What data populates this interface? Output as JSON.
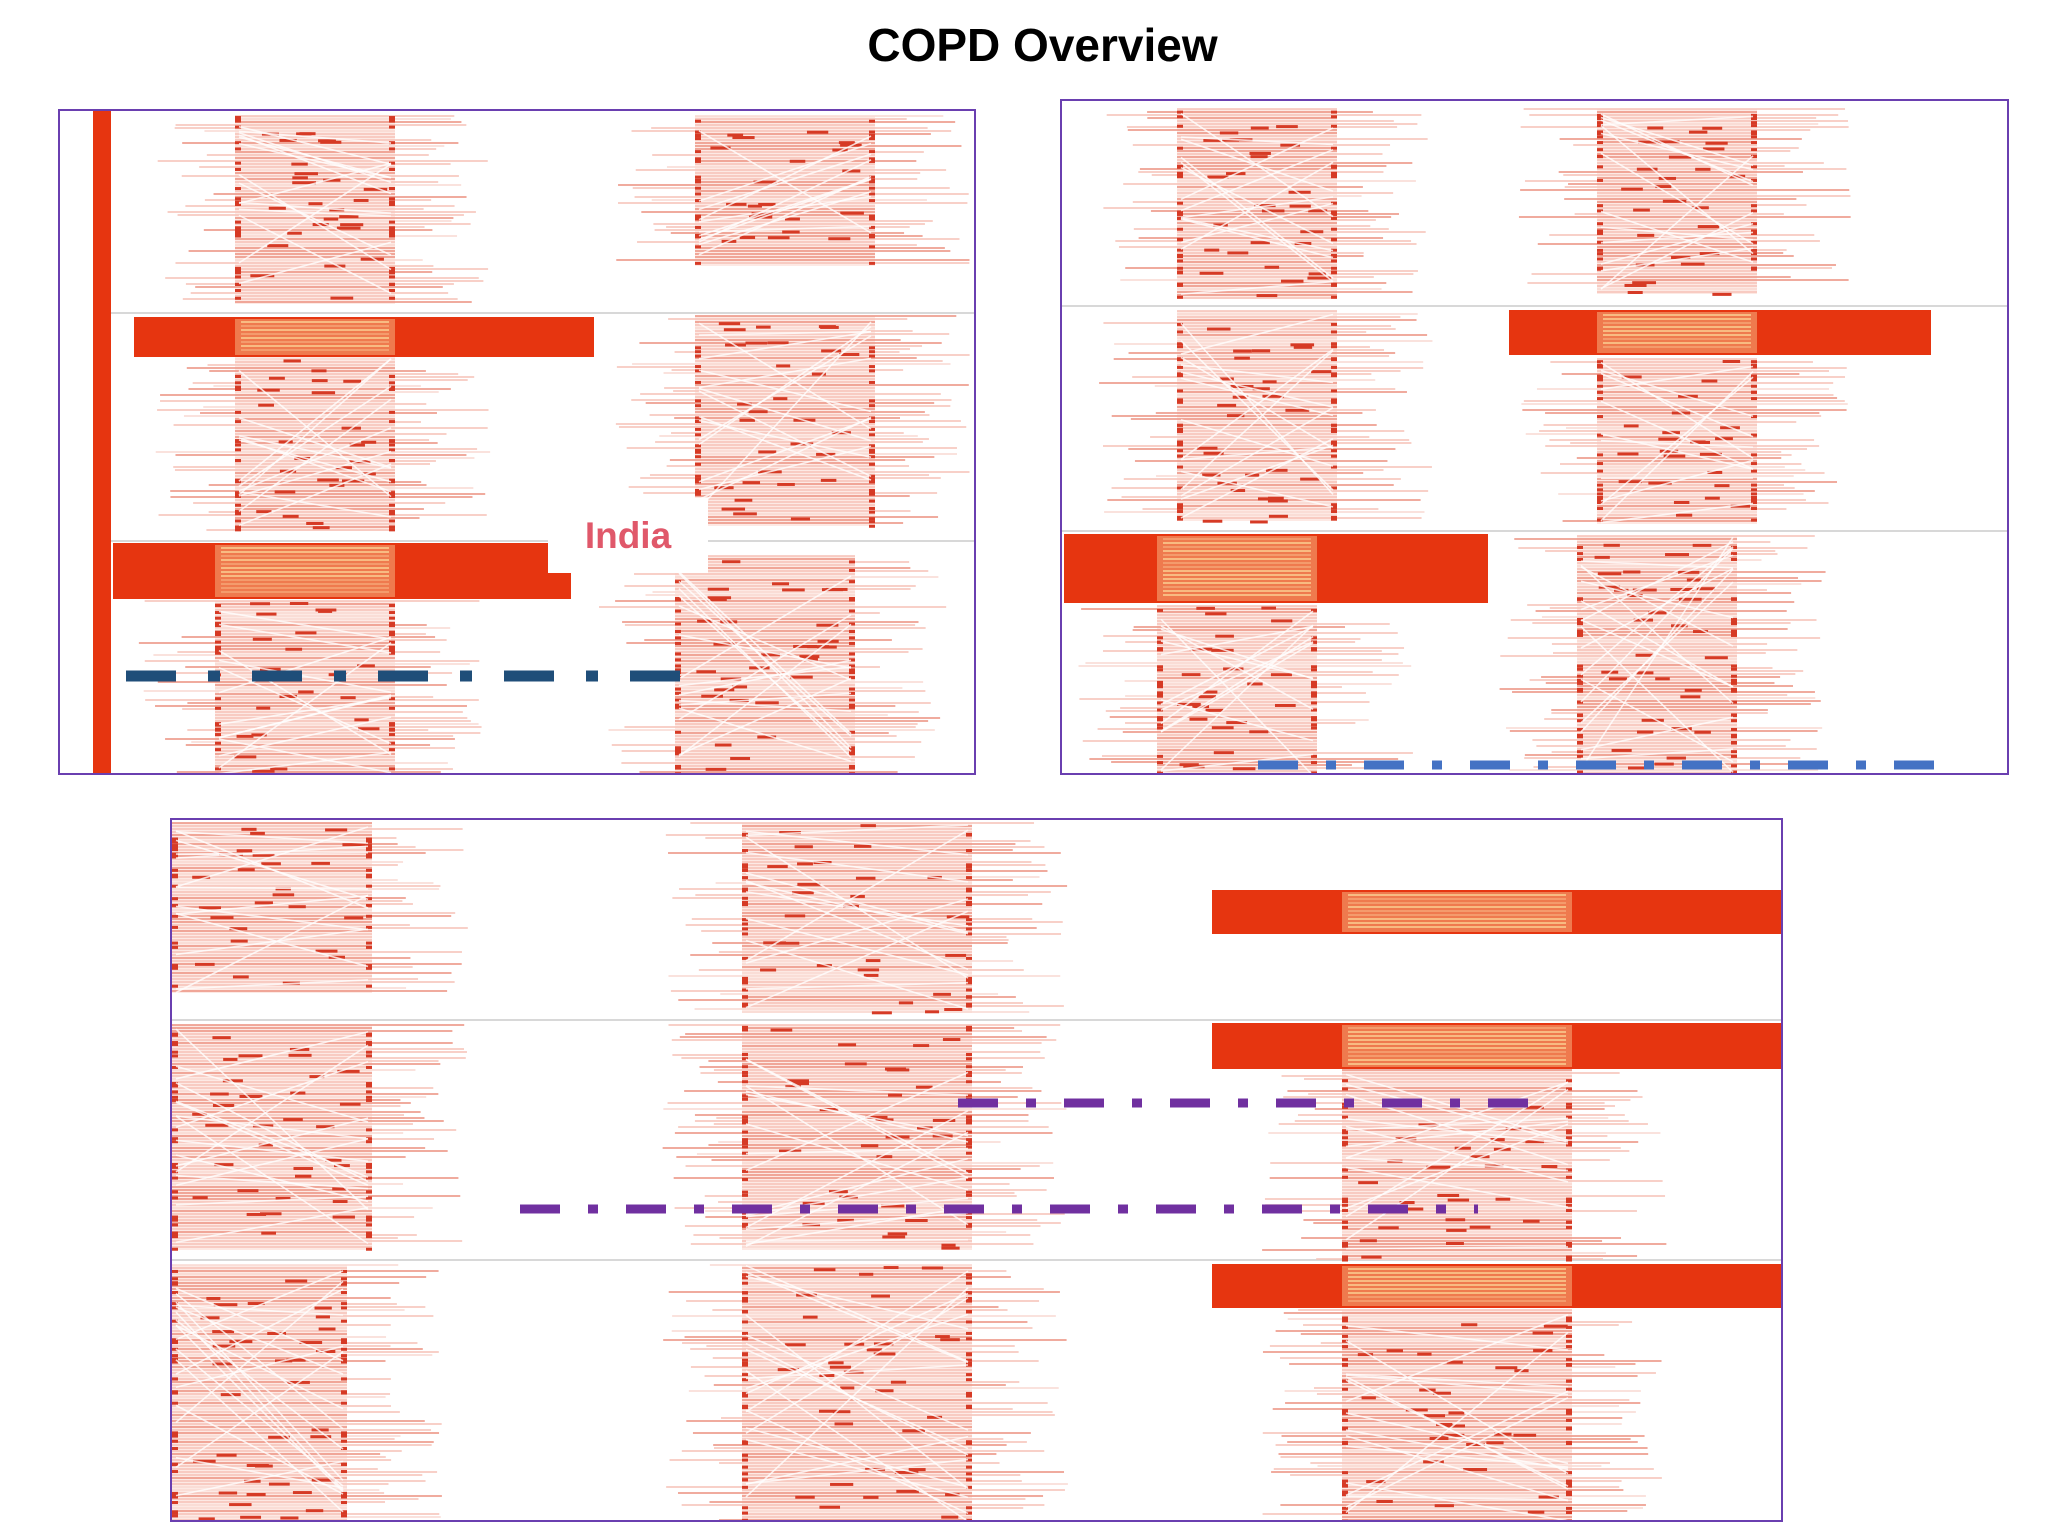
{
  "title": "COPD Overview",
  "callout_label": "India",
  "colors": {
    "frame": "#6a3fb0",
    "highlight": "#e63510",
    "heat_light": "#f6c1b6",
    "heat_mid": "#ec8f7f",
    "heat_dark": "#d63a25",
    "heat_glow": "#f9c58a",
    "rule_navy": "#1f4e79",
    "rule_blue": "#4472c4",
    "rule_purple": "#7030a0",
    "separator": "#d8d8d8"
  },
  "panels": [
    {
      "name": "top-left-panel",
      "rule_color": "rule_navy"
    },
    {
      "name": "top-right-panel",
      "rule_color": "rule_blue"
    },
    {
      "name": "bottom-panel",
      "rule_color": "rule_purple"
    }
  ]
}
